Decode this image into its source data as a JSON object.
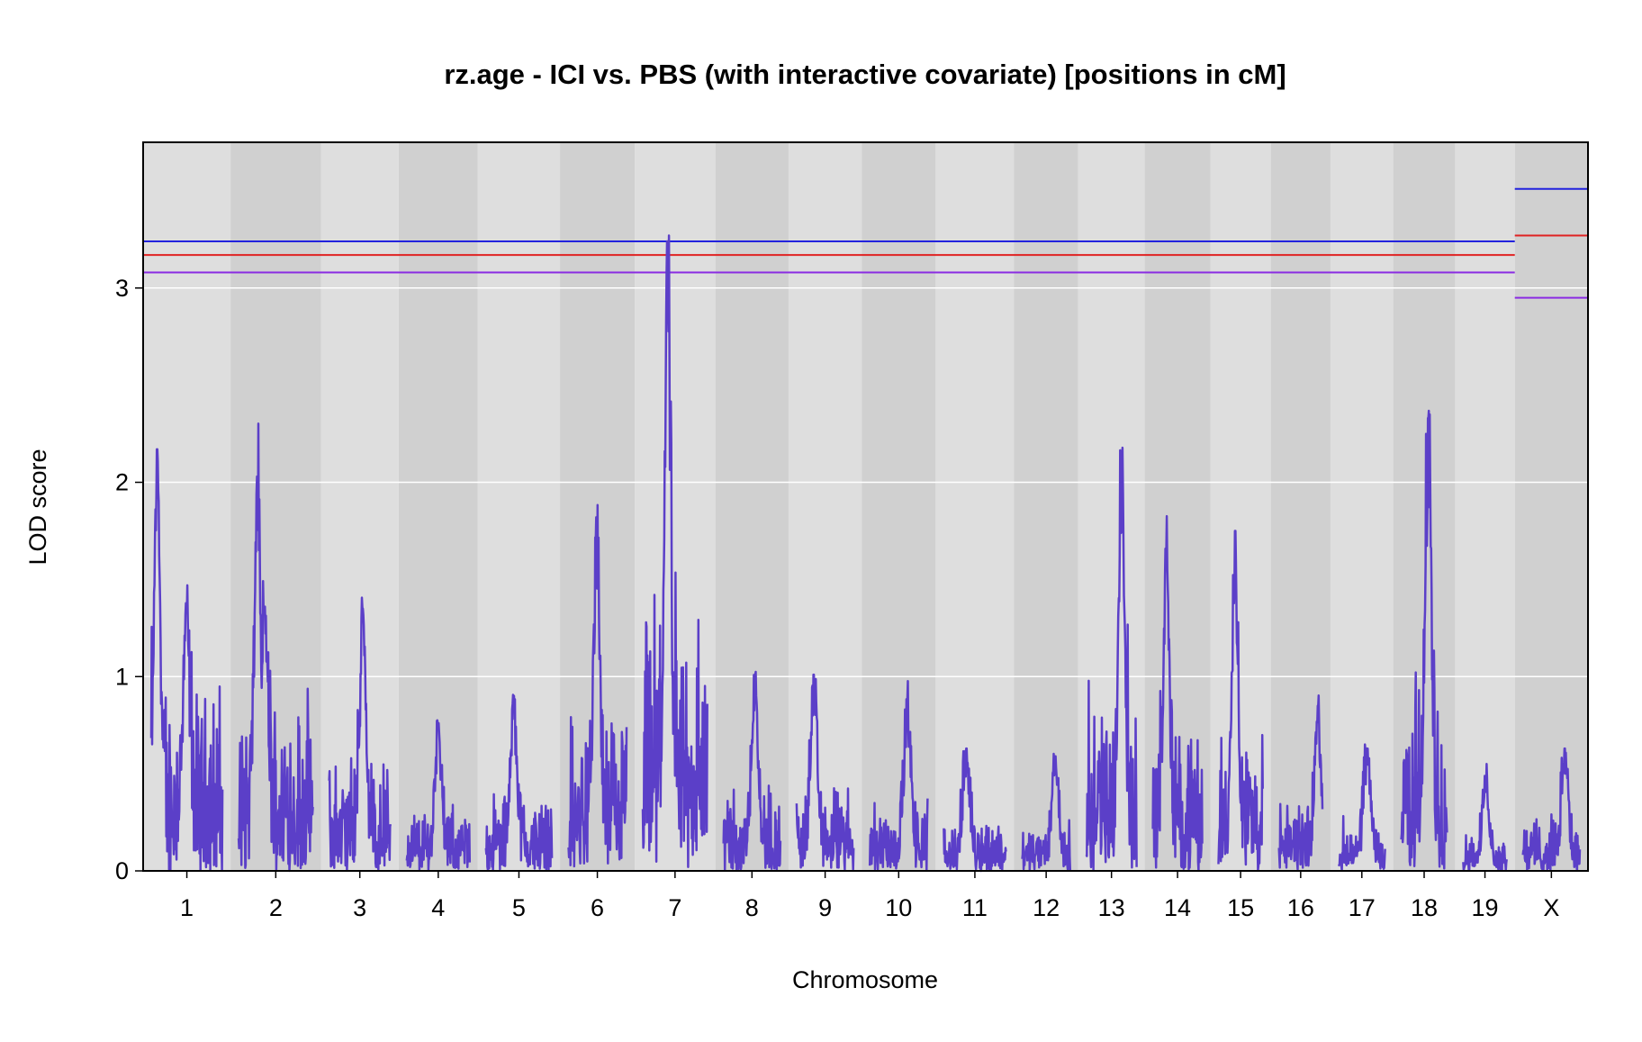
{
  "chart_data": {
    "type": "line",
    "title": "rz.age - ICI vs. PBS (with interactive covariate) [positions in cM]",
    "xlabel": "Chromosome",
    "ylabel": "LOD score",
    "ylim": [
      0,
      3.75
    ],
    "yticks": [
      "0",
      "1",
      "2",
      "3"
    ],
    "grid": "horizontal",
    "chromosomes": [
      {
        "label": "1",
        "length": 95
      },
      {
        "label": "2",
        "length": 99
      },
      {
        "label": "3",
        "length": 82
      },
      {
        "label": "4",
        "length": 84
      },
      {
        "label": "5",
        "length": 88
      },
      {
        "label": "6",
        "length": 78
      },
      {
        "label": "7",
        "length": 86
      },
      {
        "label": "8",
        "length": 76
      },
      {
        "label": "9",
        "length": 76
      },
      {
        "label": "10",
        "length": 77
      },
      {
        "label": "11",
        "length": 83
      },
      {
        "label": "12",
        "length": 64
      },
      {
        "label": "13",
        "length": 67
      },
      {
        "label": "14",
        "length": 66
      },
      {
        "label": "15",
        "length": 59
      },
      {
        "label": "16",
        "length": 58
      },
      {
        "label": "17",
        "length": 62
      },
      {
        "label": "18",
        "length": 61
      },
      {
        "label": "19",
        "length": 58
      },
      {
        "label": "X",
        "length": 76
      }
    ],
    "thresholds": {
      "autosome": [
        {
          "color": "#2222dd",
          "value": 3.24
        },
        {
          "color": "#e02222",
          "value": 3.17
        },
        {
          "color": "#8a2be2",
          "value": 3.08
        }
      ],
      "x": [
        {
          "color": "#2222dd",
          "value": 3.51
        },
        {
          "color": "#e02222",
          "value": 3.27
        },
        {
          "color": "#8a2be2",
          "value": 2.95
        }
      ]
    },
    "series": [
      {
        "color": "#5b3fc8",
        "peaks": [
          {
            "chr": "1",
            "pos": 8,
            "lod": 2.17
          },
          {
            "chr": "1",
            "pos": 47,
            "lod": 1.34
          },
          {
            "chr": "2",
            "pos": 25,
            "lod": 2.03
          },
          {
            "chr": "2",
            "pos": 35,
            "lod": 1.36
          },
          {
            "chr": "3",
            "pos": 45,
            "lod": 1.35
          },
          {
            "chr": "4",
            "pos": 42,
            "lod": 0.76
          },
          {
            "chr": "5",
            "pos": 37,
            "lod": 0.9
          },
          {
            "chr": "6",
            "pos": 38,
            "lod": 1.82
          },
          {
            "chr": "7",
            "pos": 33,
            "lod": 3.24
          },
          {
            "chr": "8",
            "pos": 42,
            "lod": 1.01
          },
          {
            "chr": "9",
            "pos": 23,
            "lod": 1.01
          },
          {
            "chr": "10",
            "pos": 50,
            "lod": 0.88
          },
          {
            "chr": "11",
            "pos": 30,
            "lod": 0.63
          },
          {
            "chr": "12",
            "pos": 44,
            "lod": 0.59
          },
          {
            "chr": "13",
            "pos": 47,
            "lod": 2.12
          },
          {
            "chr": "14",
            "pos": 18,
            "lod": 1.66
          },
          {
            "chr": "15",
            "pos": 22,
            "lod": 1.75
          },
          {
            "chr": "16",
            "pos": 52,
            "lod": 0.85
          },
          {
            "chr": "17",
            "pos": 38,
            "lod": 0.63
          },
          {
            "chr": "18",
            "pos": 36,
            "lod": 2.33
          },
          {
            "chr": "19",
            "pos": 30,
            "lod": 0.45
          },
          {
            "chr": "X",
            "pos": 56,
            "lod": 0.63
          }
        ]
      }
    ]
  }
}
